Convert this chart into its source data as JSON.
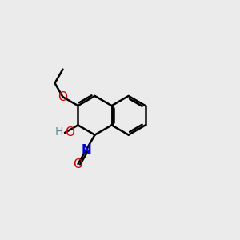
{
  "background_color": "#ebebeb",
  "bond_color": "#000000",
  "bond_width": 1.8,
  "atom_colors": {
    "O": "#cc0000",
    "H": "#5a9090",
    "N": "#0000cc",
    "C": "#000000"
  },
  "font_size": 10,
  "fig_width": 3.0,
  "fig_height": 3.0,
  "dpi": 100,
  "bl": 0.85
}
